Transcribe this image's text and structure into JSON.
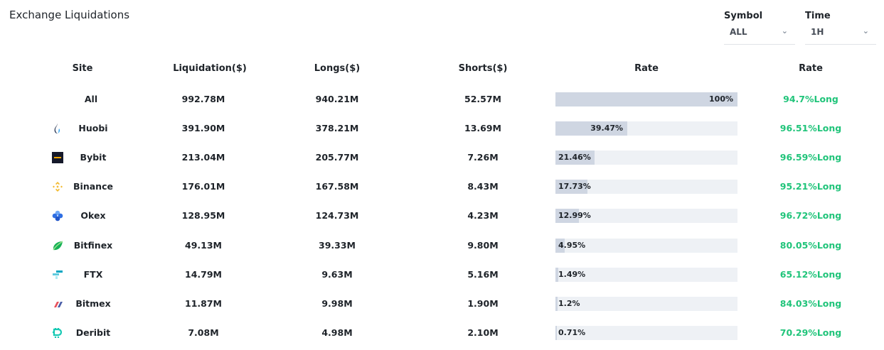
{
  "title": "Exchange Liquidations",
  "filters": {
    "symbol": {
      "label": "Symbol",
      "value": "ALL"
    },
    "time": {
      "label": "Time",
      "value": "1H"
    }
  },
  "columns": [
    "Site",
    "Liquidation($)",
    "Longs($)",
    "Shorts($)",
    "Rate",
    "Rate"
  ],
  "colors": {
    "bar_fill": "#cfd6e2",
    "bar_track": "#eef1f5",
    "long": "#20c47a"
  },
  "rows": [
    {
      "site": "All",
      "icon": "",
      "liquidation": "992.78M",
      "longs": "940.21M",
      "shorts": "52.57M",
      "share": 100,
      "share_label": "100%",
      "long_rate": "94.7%Long"
    },
    {
      "site": "Huobi",
      "icon": "huobi-flame-icon",
      "liquidation": "391.90M",
      "longs": "378.21M",
      "shorts": "13.69M",
      "share": 39.47,
      "share_label": "39.47%",
      "long_rate": "96.51%Long"
    },
    {
      "site": "Bybit",
      "icon": "bybit-logo-icon",
      "liquidation": "213.04M",
      "longs": "205.77M",
      "shorts": "7.26M",
      "share": 21.46,
      "share_label": "21.46%",
      "long_rate": "96.59%Long"
    },
    {
      "site": "Binance",
      "icon": "binance-diamond-icon",
      "liquidation": "176.01M",
      "longs": "167.58M",
      "shorts": "8.43M",
      "share": 17.73,
      "share_label": "17.73%",
      "long_rate": "95.21%Long"
    },
    {
      "site": "Okex",
      "icon": "okex-logo-icon",
      "liquidation": "128.95M",
      "longs": "124.73M",
      "shorts": "4.23M",
      "share": 12.99,
      "share_label": "12.99%",
      "long_rate": "96.72%Long"
    },
    {
      "site": "Bitfinex",
      "icon": "bitfinex-leaf-icon",
      "liquidation": "49.13M",
      "longs": "39.33M",
      "shorts": "9.80M",
      "share": 4.95,
      "share_label": "4.95%",
      "long_rate": "80.05%Long"
    },
    {
      "site": "FTX",
      "icon": "ftx-logo-icon",
      "liquidation": "14.79M",
      "longs": "9.63M",
      "shorts": "5.16M",
      "share": 1.49,
      "share_label": "1.49%",
      "long_rate": "65.12%Long"
    },
    {
      "site": "Bitmex",
      "icon": "bitmex-logo-icon",
      "liquidation": "11.87M",
      "longs": "9.98M",
      "shorts": "1.90M",
      "share": 1.2,
      "share_label": "1.2%",
      "long_rate": "84.03%Long"
    },
    {
      "site": "Deribit",
      "icon": "deribit-logo-icon",
      "liquidation": "7.08M",
      "longs": "4.98M",
      "shorts": "2.10M",
      "share": 0.71,
      "share_label": "0.71%",
      "long_rate": "70.29%Long"
    }
  ]
}
